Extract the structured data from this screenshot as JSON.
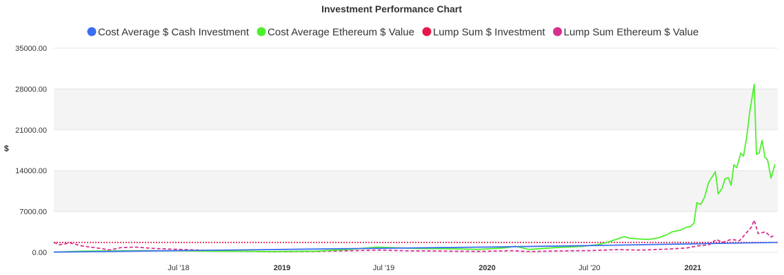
{
  "chart_data": {
    "type": "line",
    "title": "Investment Performance Chart",
    "ylabel": "$",
    "ylim": [
      0,
      35000
    ],
    "yticks": [
      "0.00",
      "7000.00",
      "14000.00",
      "21000.00",
      "28000.00",
      "35000.00"
    ],
    "xlim": [
      "2017-11-21",
      "2021-06-01"
    ],
    "xticks": [
      {
        "date": "2018-07-01",
        "label": "Jul '18",
        "bold": false
      },
      {
        "date": "2019-01-01",
        "label": "2019",
        "bold": true
      },
      {
        "date": "2019-07-01",
        "label": "Jul '19",
        "bold": false
      },
      {
        "date": "2020-01-01",
        "label": "2020",
        "bold": true
      },
      {
        "date": "2020-07-01",
        "label": "Jul '20",
        "bold": false
      },
      {
        "date": "2021-01-01",
        "label": "2021",
        "bold": true
      }
    ],
    "grid": true,
    "legend_position": "top",
    "series": [
      {
        "name": "Cost Average $ Cash Investment",
        "color": "#3b6ef0",
        "dash": "solid",
        "points": [
          [
            "2017-11-21",
            40
          ],
          [
            "2018-07-01",
            300
          ],
          [
            "2019-01-01",
            500
          ],
          [
            "2019-07-01",
            700
          ],
          [
            "2020-01-01",
            900
          ],
          [
            "2020-07-01",
            1150
          ],
          [
            "2021-01-01",
            1450
          ],
          [
            "2021-06-01",
            1700
          ]
        ]
      },
      {
        "name": "Cost Average Ethereum $ Value",
        "color": "#4cf02a",
        "dash": "solid",
        "points": [
          [
            "2017-11-21",
            40
          ],
          [
            "2018-01-15",
            200
          ],
          [
            "2018-03-01",
            250
          ],
          [
            "2018-05-01",
            280
          ],
          [
            "2018-07-01",
            250
          ],
          [
            "2018-09-01",
            200
          ],
          [
            "2018-11-01",
            180
          ],
          [
            "2018-12-15",
            120
          ],
          [
            "2019-01-15",
            150
          ],
          [
            "2019-03-01",
            200
          ],
          [
            "2019-05-01",
            500
          ],
          [
            "2019-06-20",
            900
          ],
          [
            "2019-07-15",
            800
          ],
          [
            "2019-09-01",
            650
          ],
          [
            "2019-11-01",
            600
          ],
          [
            "2019-12-15",
            500
          ],
          [
            "2020-02-01",
            750
          ],
          [
            "2020-02-20",
            1050
          ],
          [
            "2020-03-15",
            500
          ],
          [
            "2020-05-01",
            800
          ],
          [
            "2020-06-15",
            1000
          ],
          [
            "2020-07-15",
            1300
          ],
          [
            "2020-08-01",
            1700
          ],
          [
            "2020-08-20",
            2300
          ],
          [
            "2020-09-01",
            2700
          ],
          [
            "2020-09-10",
            2400
          ],
          [
            "2020-09-25",
            2300
          ],
          [
            "2020-10-15",
            2200
          ],
          [
            "2020-11-01",
            2500
          ],
          [
            "2020-11-15",
            3000
          ],
          [
            "2020-11-25",
            3500
          ],
          [
            "2020-12-10",
            3800
          ],
          [
            "2020-12-20",
            4300
          ],
          [
            "2020-12-27",
            4400
          ],
          [
            "2021-01-03",
            5000
          ],
          [
            "2021-01-08",
            8500
          ],
          [
            "2021-01-15",
            8200
          ],
          [
            "2021-01-22",
            9500
          ],
          [
            "2021-01-29",
            12000
          ],
          [
            "2021-02-10",
            13800
          ],
          [
            "2021-02-15",
            10000
          ],
          [
            "2021-02-22",
            11000
          ],
          [
            "2021-02-27",
            12600
          ],
          [
            "2021-03-05",
            12800
          ],
          [
            "2021-03-10",
            11500
          ],
          [
            "2021-03-15",
            15000
          ],
          [
            "2021-03-20",
            14500
          ],
          [
            "2021-03-27",
            17000
          ],
          [
            "2021-04-01",
            16500
          ],
          [
            "2021-04-07",
            20000
          ],
          [
            "2021-04-12",
            24000
          ],
          [
            "2021-04-20",
            28800
          ],
          [
            "2021-04-24",
            16800
          ],
          [
            "2021-04-29",
            17000
          ],
          [
            "2021-05-04",
            19200
          ],
          [
            "2021-05-09",
            16300
          ],
          [
            "2021-05-14",
            15800
          ],
          [
            "2021-05-20",
            12700
          ],
          [
            "2021-05-27",
            15100
          ]
        ]
      },
      {
        "name": "Lump Sum $ Investment",
        "color": "#e8174a",
        "dash": "dotted",
        "points": [
          [
            "2017-11-21",
            1700
          ],
          [
            "2021-06-01",
            1700
          ]
        ]
      },
      {
        "name": "Lump Sum Ethereum $ Value",
        "color": "#d6308f",
        "dash": "dashed",
        "points": [
          [
            "2017-11-21",
            1700
          ],
          [
            "2017-12-01",
            1300
          ],
          [
            "2017-12-20",
            1600
          ],
          [
            "2018-01-10",
            1100
          ],
          [
            "2018-02-10",
            700
          ],
          [
            "2018-03-01",
            400
          ],
          [
            "2018-03-20",
            800
          ],
          [
            "2018-04-15",
            900
          ],
          [
            "2018-05-20",
            650
          ],
          [
            "2018-07-01",
            500
          ],
          [
            "2018-08-01",
            400
          ],
          [
            "2018-09-01",
            280
          ],
          [
            "2018-11-15",
            150
          ],
          [
            "2018-12-15",
            100
          ],
          [
            "2019-03-01",
            150
          ],
          [
            "2019-05-15",
            300
          ],
          [
            "2019-06-25",
            390
          ],
          [
            "2019-08-15",
            250
          ],
          [
            "2019-10-01",
            220
          ],
          [
            "2019-12-15",
            150
          ],
          [
            "2020-02-15",
            270
          ],
          [
            "2020-03-15",
            130
          ],
          [
            "2020-05-01",
            220
          ],
          [
            "2020-07-01",
            300
          ],
          [
            "2020-08-20",
            460
          ],
          [
            "2020-10-01",
            380
          ],
          [
            "2020-11-15",
            540
          ],
          [
            "2020-12-20",
            730
          ],
          [
            "2021-01-10",
            1100
          ],
          [
            "2021-01-30",
            1300
          ],
          [
            "2021-02-12",
            2200
          ],
          [
            "2021-02-22",
            1700
          ],
          [
            "2021-03-10",
            2200
          ],
          [
            "2021-03-25",
            2000
          ],
          [
            "2021-04-05",
            3200
          ],
          [
            "2021-04-15",
            4300
          ],
          [
            "2021-04-20",
            5500
          ],
          [
            "2021-04-27",
            3200
          ],
          [
            "2021-05-10",
            3500
          ],
          [
            "2021-05-20",
            2600
          ],
          [
            "2021-05-27",
            3000
          ]
        ]
      }
    ]
  }
}
